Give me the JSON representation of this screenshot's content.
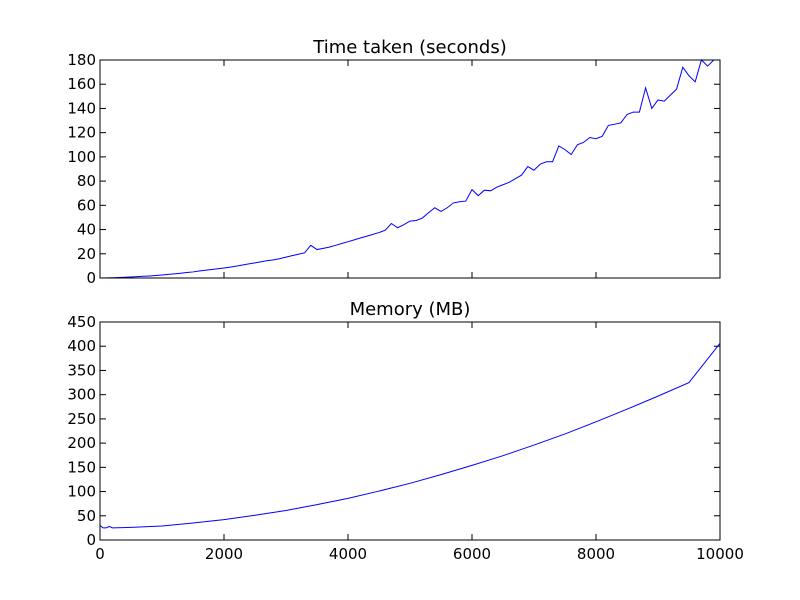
{
  "chart_data": [
    {
      "type": "line",
      "title": "Time taken (seconds)",
      "xlabel": "",
      "ylabel": "",
      "xlim": [
        0,
        10000
      ],
      "ylim": [
        0,
        180
      ],
      "yticks": [
        0,
        20,
        40,
        60,
        80,
        100,
        120,
        140,
        160,
        180
      ],
      "xticks": [
        0,
        2000,
        4000,
        6000,
        8000,
        10000
      ],
      "show_xtick_labels": false,
      "grid": false,
      "color": "#0000ff",
      "x": [
        0,
        100,
        200,
        300,
        400,
        500,
        600,
        700,
        800,
        900,
        1000,
        1100,
        1200,
        1300,
        1400,
        1500,
        1600,
        1700,
        1800,
        1900,
        2000,
        2100,
        2200,
        2300,
        2400,
        2500,
        2600,
        2700,
        2800,
        2900,
        3000,
        3100,
        3200,
        3300,
        3400,
        3500,
        3600,
        3700,
        3800,
        3900,
        4000,
        4100,
        4200,
        4300,
        4400,
        4500,
        4600,
        4700,
        4800,
        4900,
        5000,
        5100,
        5200,
        5300,
        5400,
        5500,
        5600,
        5700,
        5800,
        5900,
        6000,
        6100,
        6200,
        6300,
        6400,
        6500,
        6600,
        6700,
        6800,
        6900,
        7000,
        7100,
        7200,
        7300,
        7400,
        7500,
        7600,
        7700,
        7800,
        7900,
        8000,
        8100,
        8200,
        8300,
        8400,
        8500,
        8600,
        8700,
        8800,
        8900,
        9000,
        9100,
        9200,
        9300,
        9400,
        9500,
        9600,
        9700,
        9800,
        9900,
        10000
      ],
      "values": [
        0,
        0.1,
        0.2,
        0.4,
        0.6,
        0.8,
        1.1,
        1.4,
        1.7,
        2.1,
        2.5,
        3.0,
        3.4,
        3.9,
        4.5,
        5.0,
        5.8,
        6.4,
        7.0,
        7.6,
        8.3,
        9.0,
        9.8,
        10.7,
        11.7,
        12.5,
        13.4,
        14.3,
        15.0,
        16.0,
        17.2,
        18.5,
        19.6,
        20.8,
        27.0,
        23.5,
        24.5,
        25.5,
        27.0,
        28.5,
        30.0,
        31.5,
        33.0,
        34.5,
        36.0,
        37.5,
        39.5,
        45.0,
        41.5,
        44.0,
        47.0,
        47.5,
        49.5,
        54.0,
        58.0,
        55.0,
        58.0,
        62.0,
        63.0,
        63.5,
        73.0,
        68.0,
        72.5,
        72.0,
        75.0,
        77.0,
        79.0,
        82.0,
        85.0,
        92.0,
        89.0,
        94.0,
        96.0,
        96.0,
        109.0,
        106.0,
        102.0,
        110.0,
        112.0,
        116.0,
        115.0,
        117.0,
        126.0,
        127.0,
        128.0,
        135.0,
        137.0,
        137.0,
        157.0,
        140.0,
        147.0,
        146.0,
        151.0,
        156.0,
        174.0,
        167.0,
        162.0,
        180.0,
        175.0,
        180.0,
        180.0
      ]
    },
    {
      "type": "line",
      "title": "Memory (MB)",
      "xlabel": "",
      "ylabel": "",
      "xlim": [
        0,
        10000
      ],
      "ylim": [
        0,
        450
      ],
      "yticks": [
        0,
        50,
        100,
        150,
        200,
        250,
        300,
        350,
        400,
        450
      ],
      "xticks": [
        0,
        2000,
        4000,
        6000,
        8000,
        10000
      ],
      "xtick_labels": [
        "0",
        "2000",
        "4000",
        "6000",
        "8000",
        "10000"
      ],
      "grid": false,
      "color": "#0000ff",
      "x": [
        0,
        50,
        100,
        150,
        200,
        500,
        1000,
        1500,
        2000,
        2500,
        3000,
        3500,
        4000,
        4500,
        5000,
        5500,
        6000,
        6500,
        7000,
        7500,
        8000,
        8500,
        9000,
        9500,
        10000
      ],
      "values": [
        30,
        25,
        25,
        28,
        25,
        26,
        29,
        35,
        42,
        51,
        61,
        73,
        86,
        101,
        117,
        135,
        154,
        174,
        196,
        219,
        244,
        270,
        297,
        325,
        406
      ]
    }
  ]
}
